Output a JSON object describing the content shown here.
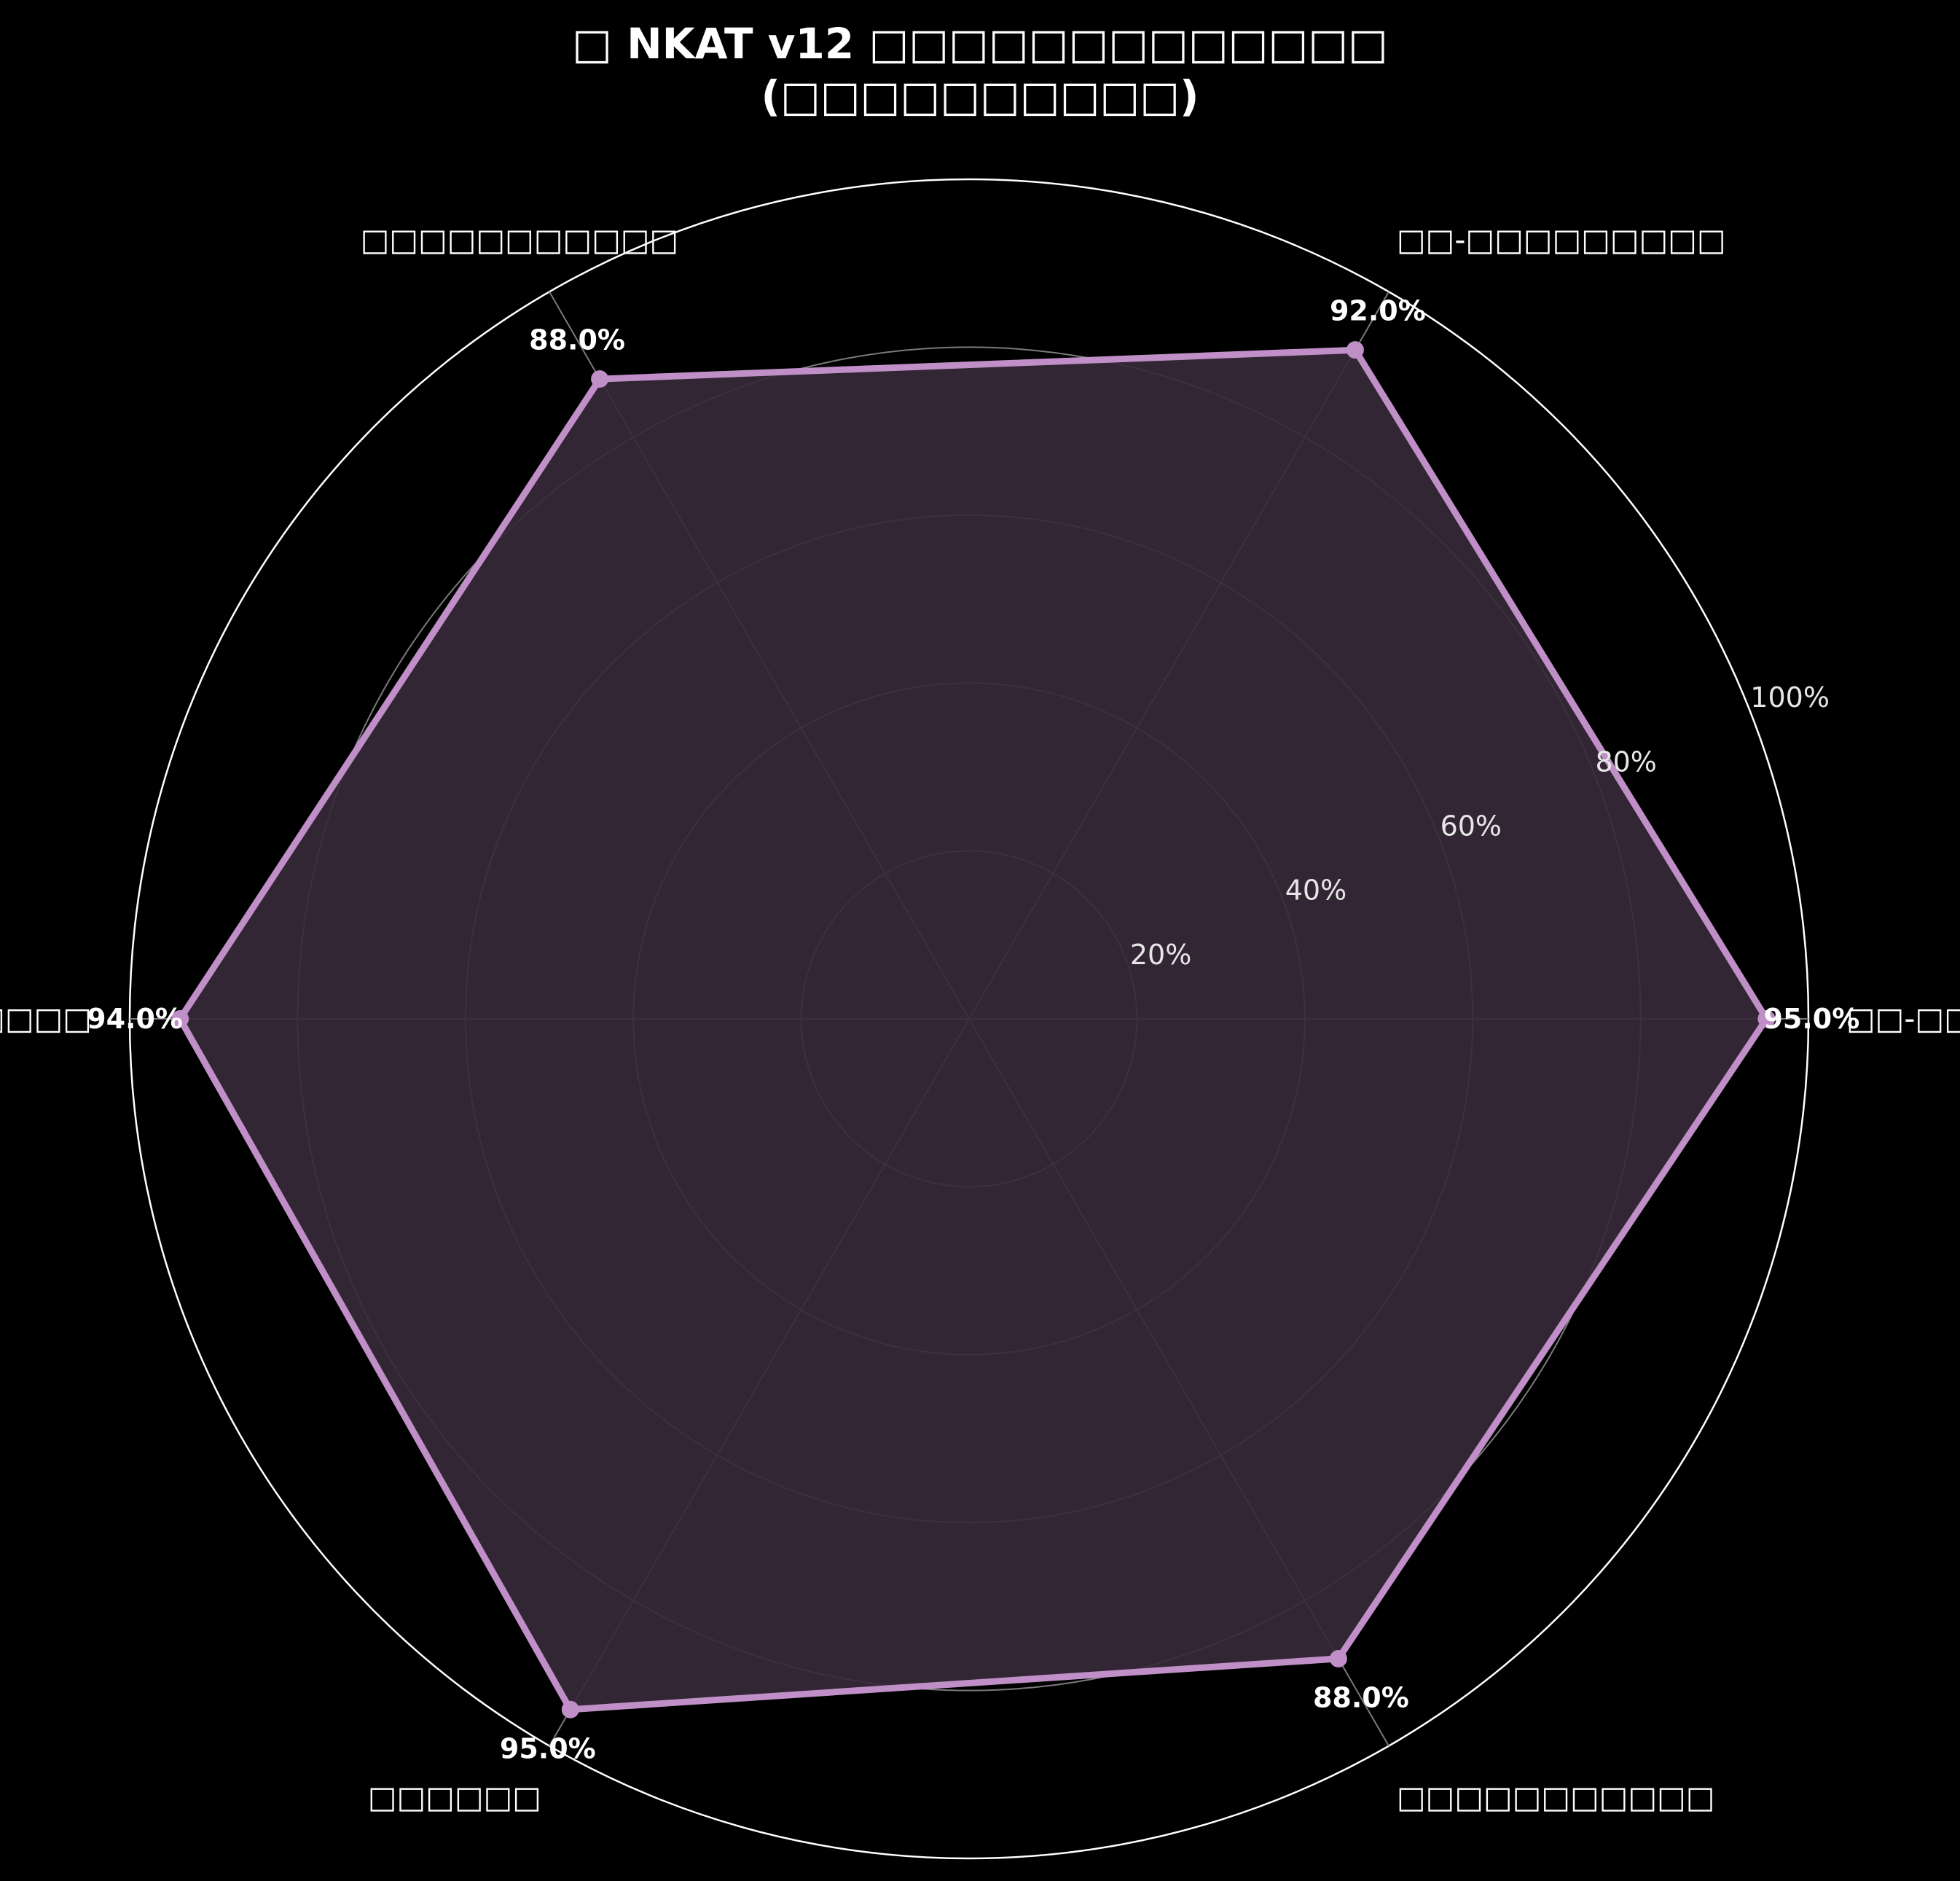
{
  "chart_data": {
    "type": "radar",
    "title": [
      "□ NKAT v12 □□□□□□□□□□□□□",
      "(□□□□□□□□□□)"
    ],
    "categories": [
      "□□-□□□□□",
      "□□-□□□□□□□□□",
      "□□□□□□□□□□□",
      "□□□□□□",
      "□□□□□□",
      "□□□□□□□□□□□"
    ],
    "values": [
      95.0,
      92.0,
      88.0,
      94.0,
      95.0,
      88.0
    ],
    "value_labels": [
      "95.0%",
      "92.0%",
      "88.0%",
      "94.0%",
      "95.0%",
      "88.0%"
    ],
    "rlim": [
      0,
      100
    ],
    "r_ticks": [
      20,
      40,
      60,
      80,
      100
    ],
    "r_tick_labels": [
      "20%",
      "40%",
      "60%",
      "80%",
      "100%"
    ],
    "grid": true,
    "colors": {
      "background": "#000000",
      "series_line": "#c08fc8",
      "series_fill": "#362838",
      "grid": "#7a7a7a",
      "outer_ring": "#ffffff",
      "text": "#ffffff"
    }
  }
}
